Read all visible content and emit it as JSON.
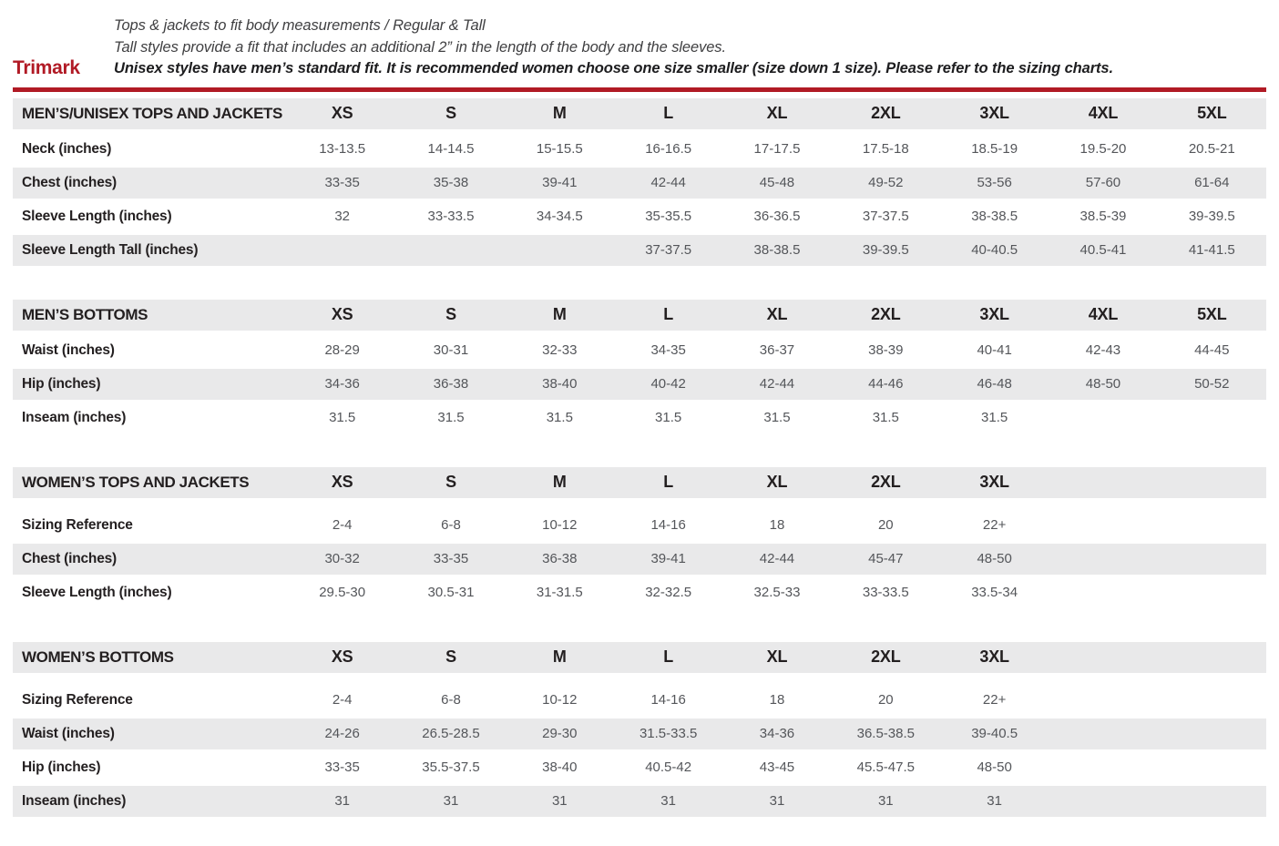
{
  "header": {
    "brand": "Trimark",
    "line1": "Tops & jackets to fit body measurements / Regular & Tall",
    "line2": "Tall styles provide a fit that includes an additional 2” in the length of the body and the sleeves.",
    "line3": "Unisex styles have men’s standard fit. It is recommended women choose one size smaller (size down 1 size).  Please refer to the sizing charts."
  },
  "colors": {
    "brand_red": "#b11a25",
    "band_gray": "#e9e9ea",
    "label_text": "#231f20",
    "value_text": "#54565a"
  },
  "tables": [
    {
      "title": "MEN’S/UNISEX TOPS AND JACKETS",
      "sizes": [
        "XS",
        "S",
        "M",
        "L",
        "XL",
        "2XL",
        "3XL",
        "4XL",
        "5XL"
      ],
      "rows": [
        {
          "label": "Neck (inches)",
          "values": [
            "13-13.5",
            "14-14.5",
            "15-15.5",
            "16-16.5",
            "17-17.5",
            "17.5-18",
            "18.5-19",
            "19.5-20",
            "20.5-21"
          ]
        },
        {
          "label": "Chest (inches)",
          "values": [
            "33-35",
            "35-38",
            "39-41",
            "42-44",
            "45-48",
            "49-52",
            "53-56",
            "57-60",
            "61-64"
          ]
        },
        {
          "label": "Sleeve Length (inches)",
          "values": [
            "32",
            "33-33.5",
            "34-34.5",
            "35-35.5",
            "36-36.5",
            "37-37.5",
            "38-38.5",
            "38.5-39",
            "39-39.5"
          ]
        },
        {
          "label": "Sleeve Length Tall (inches)",
          "values": [
            "",
            "",
            "",
            "37-37.5",
            "38-38.5",
            "39-39.5",
            "40-40.5",
            "40.5-41",
            "41-41.5"
          ]
        }
      ]
    },
    {
      "title": "MEN’S BOTTOMS",
      "sizes": [
        "XS",
        "S",
        "M",
        "L",
        "XL",
        "2XL",
        "3XL",
        "4XL",
        "5XL"
      ],
      "rows": [
        {
          "label": "Waist (inches)",
          "values": [
            "28-29",
            "30-31",
            "32-33",
            "34-35",
            "36-37",
            "38-39",
            "40-41",
            "42-43",
            "44-45"
          ]
        },
        {
          "label": "Hip (inches)",
          "values": [
            "34-36",
            "36-38",
            "38-40",
            "40-42",
            "42-44",
            "44-46",
            "46-48",
            "48-50",
            "50-52"
          ]
        },
        {
          "label": "Inseam (inches)",
          "values": [
            "31.5",
            "31.5",
            "31.5",
            "31.5",
            "31.5",
            "31.5",
            "31.5",
            "",
            ""
          ]
        }
      ]
    },
    {
      "title": "WOMEN’S TOPS AND JACKETS",
      "sizes": [
        "XS",
        "S",
        "M",
        "L",
        "XL",
        "2XL",
        "3XL",
        "",
        ""
      ],
      "rows": [
        {
          "label": "Sizing Reference",
          "values": [
            "2-4",
            "6-8",
            "10-12",
            "14-16",
            "18",
            "20",
            "22+",
            "",
            ""
          ]
        },
        {
          "label": "Chest (inches)",
          "values": [
            "30-32",
            "33-35",
            "36-38",
            "39-41",
            "42-44",
            "45-47",
            "48-50",
            "",
            ""
          ]
        },
        {
          "label": "Sleeve Length (inches)",
          "values": [
            "29.5-30",
            "30.5-31",
            "31-31.5",
            "32-32.5",
            "32.5-33",
            "33-33.5",
            "33.5-34",
            "",
            ""
          ]
        }
      ]
    },
    {
      "title": "WOMEN’S BOTTOMS",
      "sizes": [
        "XS",
        "S",
        "M",
        "L",
        "XL",
        "2XL",
        "3XL",
        "",
        ""
      ],
      "rows": [
        {
          "label": "Sizing Reference",
          "values": [
            "2-4",
            "6-8",
            "10-12",
            "14-16",
            "18",
            "20",
            "22+",
            "",
            ""
          ]
        },
        {
          "label": "Waist (inches)",
          "values": [
            "24-26",
            "26.5-28.5",
            "29-30",
            "31.5-33.5",
            "34-36",
            "36.5-38.5",
            "39-40.5",
            "",
            ""
          ]
        },
        {
          "label": "Hip (inches)",
          "values": [
            "33-35",
            "35.5-37.5",
            "38-40",
            "40.5-42",
            "43-45",
            "45.5-47.5",
            "48-50",
            "",
            ""
          ]
        },
        {
          "label": "Inseam (inches)",
          "values": [
            "31",
            "31",
            "31",
            "31",
            "31",
            "31",
            "31",
            "",
            ""
          ]
        }
      ]
    }
  ]
}
